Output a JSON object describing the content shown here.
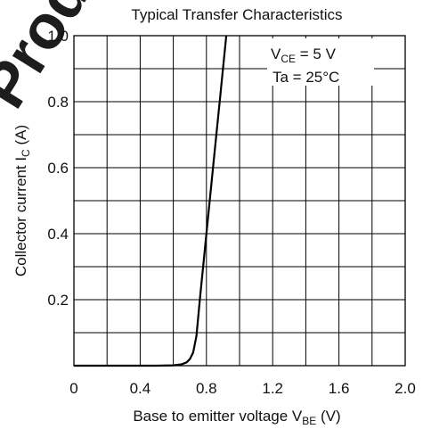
{
  "watermark": {
    "text": "Produ",
    "color": "#e8101a"
  },
  "chart_data": {
    "type": "line",
    "title": "Typical Transfer Characteristics",
    "xlabel": {
      "main": "Base to emitter voltage  V",
      "sub": "BE",
      "unit": "  (V)"
    },
    "ylabel": {
      "main": "Collector current  I",
      "sub": "C",
      "unit": "  (A)"
    },
    "xlim": [
      0,
      2.0
    ],
    "ylim": [
      0,
      1.0
    ],
    "grid": true,
    "x_ticks": [
      "0",
      "0.4",
      "0.8",
      "1.2",
      "1.6",
      "2.0"
    ],
    "y_ticks": [
      "0.2",
      "0.4",
      "0.6",
      "0.8",
      "1.0"
    ],
    "conditions": {
      "vce": {
        "main": "V",
        "sub": "CE",
        "rest": " = 5 V"
      },
      "ta": "Ta = 25°C"
    },
    "series": [
      {
        "color": "#000000",
        "points": [
          [
            0.0,
            0.0
          ],
          [
            0.5,
            0.0
          ],
          [
            0.6,
            0.001
          ],
          [
            0.65,
            0.004
          ],
          [
            0.68,
            0.01
          ],
          [
            0.7,
            0.02
          ],
          [
            0.72,
            0.04
          ],
          [
            0.74,
            0.09
          ],
          [
            0.76,
            0.2
          ],
          [
            0.78,
            0.3
          ],
          [
            0.8,
            0.4
          ],
          [
            0.84,
            0.6
          ],
          [
            0.88,
            0.8
          ],
          [
            0.92,
            1.0
          ]
        ]
      }
    ]
  }
}
